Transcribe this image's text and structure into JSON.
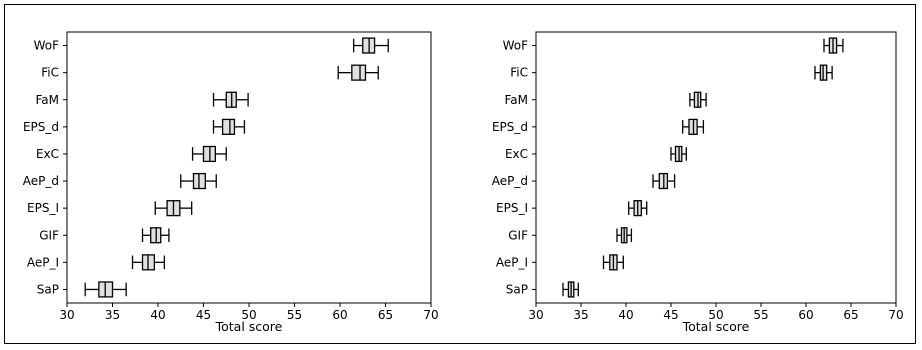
{
  "chart_data": [
    {
      "type": "boxplot",
      "orientation": "horizontal",
      "xlabel": "Total score",
      "xlim": [
        30,
        70
      ],
      "xticks": [
        "30",
        "35",
        "40",
        "45",
        "50",
        "55",
        "60",
        "65",
        "70"
      ],
      "categories": [
        "WoF",
        "FiC",
        "FaM",
        "EPS_d",
        "ExC",
        "AeP_d",
        "EPS_I",
        "GIF",
        "AeP_I",
        "SaP"
      ],
      "boxes": [
        {
          "whislo": 61.5,
          "q1": 62.5,
          "med": 63.2,
          "q3": 63.8,
          "whishi": 65.3
        },
        {
          "whislo": 59.8,
          "q1": 61.3,
          "med": 62.2,
          "q3": 62.8,
          "whishi": 64.2
        },
        {
          "whislo": 46.1,
          "q1": 47.5,
          "med": 48.1,
          "q3": 48.6,
          "whishi": 49.9
        },
        {
          "whislo": 46.1,
          "q1": 47.1,
          "med": 47.9,
          "q3": 48.4,
          "whishi": 49.5
        },
        {
          "whislo": 43.8,
          "q1": 45.0,
          "med": 45.7,
          "q3": 46.3,
          "whishi": 47.5
        },
        {
          "whislo": 42.5,
          "q1": 43.9,
          "med": 44.5,
          "q3": 45.2,
          "whishi": 46.4
        },
        {
          "whislo": 39.7,
          "q1": 41.0,
          "med": 41.7,
          "q3": 42.4,
          "whishi": 43.7
        },
        {
          "whislo": 38.3,
          "q1": 39.2,
          "med": 39.8,
          "q3": 40.3,
          "whishi": 41.2
        },
        {
          "whislo": 37.2,
          "q1": 38.3,
          "med": 38.9,
          "q3": 39.6,
          "whishi": 40.7
        },
        {
          "whislo": 32.0,
          "q1": 33.5,
          "med": 34.2,
          "q3": 35.0,
          "whishi": 36.5
        }
      ]
    },
    {
      "type": "boxplot",
      "orientation": "horizontal",
      "xlabel": "Total score",
      "xlim": [
        30,
        70
      ],
      "xticks": [
        "30",
        "35",
        "40",
        "45",
        "50",
        "55",
        "60",
        "65",
        "70"
      ],
      "categories": [
        "WoF",
        "FiC",
        "FaM",
        "EPS_d",
        "ExC",
        "AeP_d",
        "EPS_I",
        "GIF",
        "AeP_I",
        "SaP"
      ],
      "boxes": [
        {
          "whislo": 62.0,
          "q1": 62.6,
          "med": 63.0,
          "q3": 63.4,
          "whishi": 64.1
        },
        {
          "whislo": 61.0,
          "q1": 61.6,
          "med": 61.9,
          "q3": 62.3,
          "whishi": 62.9
        },
        {
          "whislo": 47.1,
          "q1": 47.6,
          "med": 48.0,
          "q3": 48.3,
          "whishi": 48.9
        },
        {
          "whislo": 46.3,
          "q1": 47.0,
          "med": 47.5,
          "q3": 47.9,
          "whishi": 48.6
        },
        {
          "whislo": 45.0,
          "q1": 45.5,
          "med": 45.9,
          "q3": 46.2,
          "whishi": 46.7
        },
        {
          "whislo": 43.0,
          "q1": 43.7,
          "med": 44.2,
          "q3": 44.6,
          "whishi": 45.4
        },
        {
          "whislo": 40.3,
          "q1": 40.9,
          "med": 41.3,
          "q3": 41.7,
          "whishi": 42.3
        },
        {
          "whislo": 39.0,
          "q1": 39.5,
          "med": 39.8,
          "q3": 40.1,
          "whishi": 40.6
        },
        {
          "whislo": 37.5,
          "q1": 38.2,
          "med": 38.6,
          "q3": 39.0,
          "whishi": 39.7
        },
        {
          "whislo": 33.0,
          "q1": 33.6,
          "med": 33.9,
          "q3": 34.2,
          "whishi": 34.7
        }
      ]
    }
  ],
  "style": {
    "box_fill": "#e0e0e0",
    "line": "#000000"
  }
}
